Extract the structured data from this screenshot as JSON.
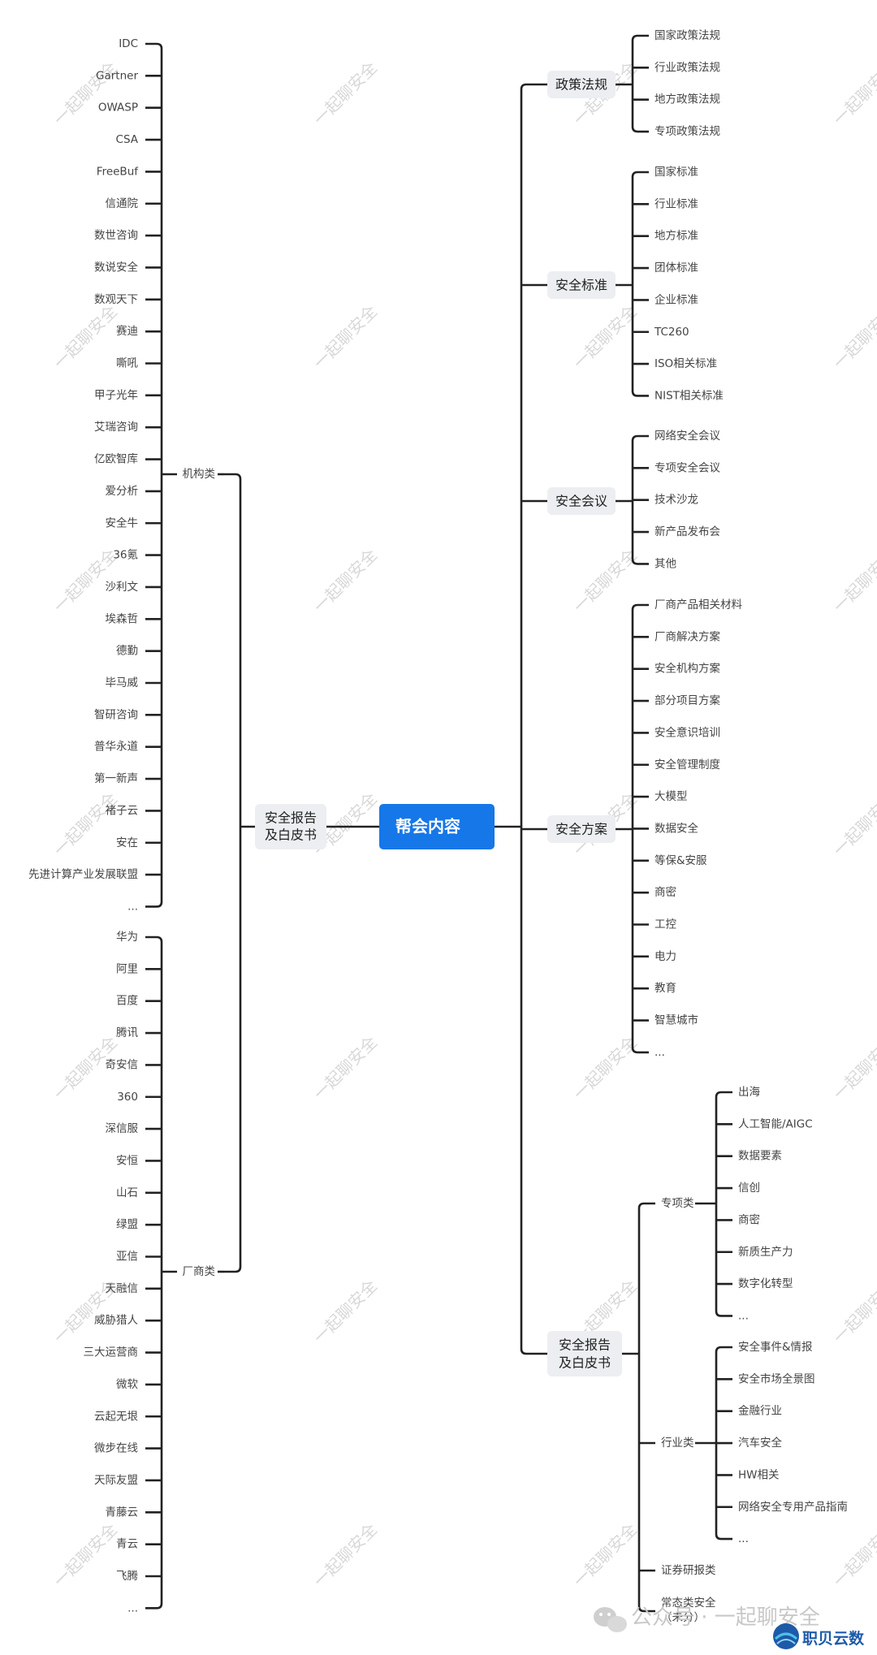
{
  "center": "帮会内容",
  "left_branch": {
    "label_line1": "安全报告",
    "label_line2": "及白皮书",
    "groups": [
      {
        "label": "机构类",
        "items": [
          "IDC",
          "Gartner",
          "OWASP",
          "CSA",
          "FreeBuf",
          "信通院",
          "数世咨询",
          "数说安全",
          "数观天下",
          "赛迪",
          "嘶吼",
          "甲子光年",
          "艾瑞咨询",
          "亿欧智库",
          "爱分析",
          "安全牛",
          "36氪",
          "沙利文",
          "埃森哲",
          "德勤",
          "毕马威",
          "智研咨询",
          "普华永道",
          "第一新声",
          "褚子云",
          "安在",
          "先进计算产业发展联盟",
          "..."
        ]
      },
      {
        "label": "厂商类",
        "items": [
          "华为",
          "阿里",
          "百度",
          "腾讯",
          "奇安信",
          "360",
          "深信服",
          "安恒",
          "山石",
          "绿盟",
          "亚信",
          "天融信",
          "威胁猎人",
          "三大运营商",
          "微软",
          "云起无垠",
          "微步在线",
          "天际友盟",
          "青藤云",
          "青云",
          "飞腾",
          "..."
        ]
      }
    ]
  },
  "right_branches": [
    {
      "label": "政策法规",
      "items": [
        "国家政策法规",
        "行业政策法规",
        "地方政策法规",
        "专项政策法规"
      ]
    },
    {
      "label": "安全标准",
      "items": [
        "国家标准",
        "行业标准",
        "地方标准",
        "团体标准",
        "企业标准",
        "TC260",
        "ISO相关标准",
        "NIST相关标准"
      ]
    },
    {
      "label": "安全会议",
      "items": [
        "网络安全会议",
        "专项安全会议",
        "技术沙龙",
        "新产品发布会",
        "其他"
      ]
    },
    {
      "label": "安全方案",
      "items": [
        "厂商产品相关材料",
        "厂商解决方案",
        "安全机构方案",
        "部分项目方案",
        "安全意识培训",
        "安全管理制度",
        "大模型",
        "数据安全",
        "等保&安服",
        "商密",
        "工控",
        "电力",
        "教育",
        "智慧城市",
        "..."
      ]
    },
    {
      "label_line1": "安全报告",
      "label_line2": "及白皮书",
      "subs": [
        {
          "label": "专项类",
          "items": [
            "出海",
            "人工智能/AIGC",
            "数据要素",
            "信创",
            "商密",
            "新质生产力",
            "数字化转型",
            "..."
          ]
        },
        {
          "label": "行业类",
          "items": [
            "安全事件&情报",
            "安全市场全景图",
            "金融行业",
            "汽车安全",
            "HW相关",
            "网络安全专用产品指南",
            "..."
          ]
        },
        {
          "label": "证券研报类",
          "items": []
        },
        {
          "label_line1": "常态类安全",
          "label_line2": "（未分）",
          "items": []
        }
      ]
    }
  ],
  "watermark": "一起聊安全",
  "footer": {
    "account": "公众号 · 一起聊安全",
    "brand": "职贝云数"
  },
  "colors": {
    "center_fill": "#1677e8",
    "node_fill": "#eceef1",
    "line": "#222222"
  }
}
